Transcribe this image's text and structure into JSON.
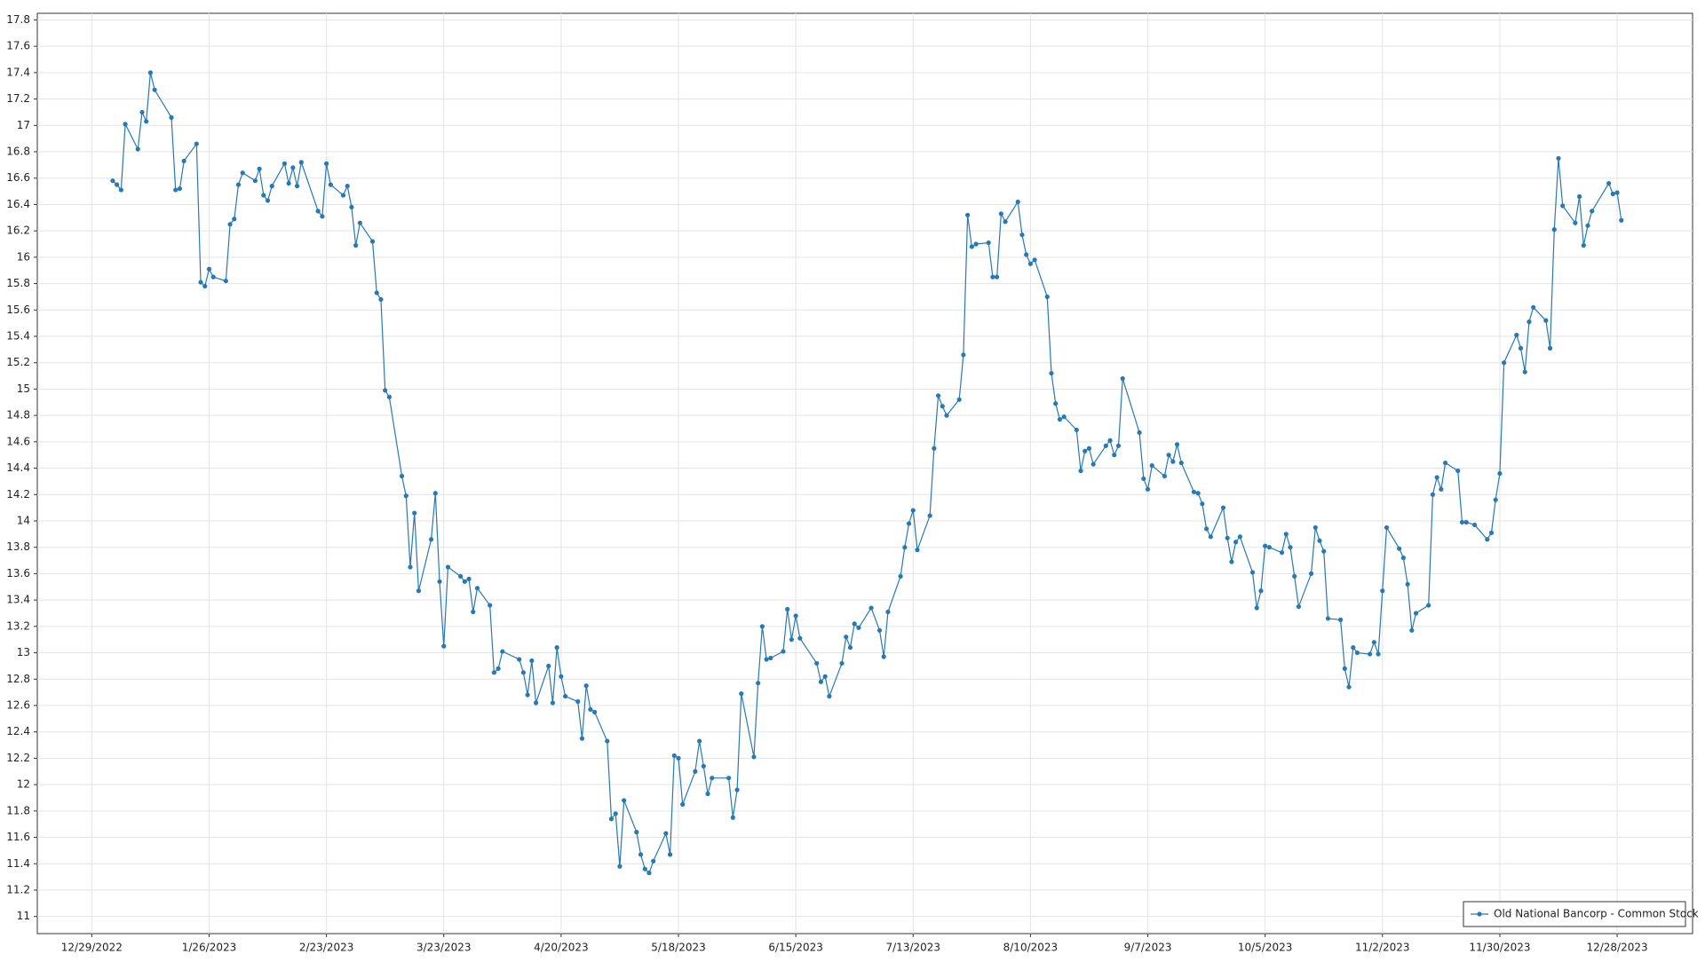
{
  "chart_data": {
    "type": "line",
    "x": [
      "1/3/2023",
      "1/4/2023",
      "1/5/2023",
      "1/6/2023",
      "1/9/2023",
      "1/10/2023",
      "1/11/2023",
      "1/12/2023",
      "1/13/2023",
      "1/17/2023",
      "1/18/2023",
      "1/19/2023",
      "1/20/2023",
      "1/23/2023",
      "1/24/2023",
      "1/25/2023",
      "1/26/2023",
      "1/27/2023",
      "1/30/2023",
      "1/31/2023",
      "2/1/2023",
      "2/2/2023",
      "2/3/2023",
      "2/6/2023",
      "2/7/2023",
      "2/8/2023",
      "2/9/2023",
      "2/10/2023",
      "2/13/2023",
      "2/14/2023",
      "2/15/2023",
      "2/16/2023",
      "2/17/2023",
      "2/21/2023",
      "2/22/2023",
      "2/23/2023",
      "2/24/2023",
      "2/27/2023",
      "2/28/2023",
      "3/1/2023",
      "3/2/2023",
      "3/3/2023",
      "3/6/2023",
      "3/7/2023",
      "3/8/2023",
      "3/9/2023",
      "3/10/2023",
      "3/13/2023",
      "3/14/2023",
      "3/15/2023",
      "3/16/2023",
      "3/17/2023",
      "3/20/2023",
      "3/21/2023",
      "3/22/2023",
      "3/23/2023",
      "3/24/2023",
      "3/27/2023",
      "3/28/2023",
      "3/29/2023",
      "3/30/2023",
      "3/31/2023",
      "4/3/2023",
      "4/4/2023",
      "4/5/2023",
      "4/6/2023",
      "4/10/2023",
      "4/11/2023",
      "4/12/2023",
      "4/13/2023",
      "4/14/2023",
      "4/17/2023",
      "4/18/2023",
      "4/19/2023",
      "4/20/2023",
      "4/21/2023",
      "4/24/2023",
      "4/25/2023",
      "4/26/2023",
      "4/27/2023",
      "4/28/2023",
      "5/1/2023",
      "5/2/2023",
      "5/3/2023",
      "5/4/2023",
      "5/5/2023",
      "5/8/2023",
      "5/9/2023",
      "5/10/2023",
      "5/11/2023",
      "5/12/2023",
      "5/15/2023",
      "5/16/2023",
      "5/17/2023",
      "5/18/2023",
      "5/19/2023",
      "5/22/2023",
      "5/23/2023",
      "5/24/2023",
      "5/25/2023",
      "5/26/2023",
      "5/30/2023",
      "5/31/2023",
      "6/1/2023",
      "6/2/2023",
      "6/5/2023",
      "6/6/2023",
      "6/7/2023",
      "6/8/2023",
      "6/9/2023",
      "6/12/2023",
      "6/13/2023",
      "6/14/2023",
      "6/15/2023",
      "6/16/2023",
      "6/20/2023",
      "6/21/2023",
      "6/22/2023",
      "6/23/2023",
      "6/26/2023",
      "6/27/2023",
      "6/28/2023",
      "6/29/2023",
      "6/30/2023",
      "7/3/2023",
      "7/5/2023",
      "7/6/2023",
      "7/7/2023",
      "7/10/2023",
      "7/11/2023",
      "7/12/2023",
      "7/13/2023",
      "7/14/2023",
      "7/17/2023",
      "7/18/2023",
      "7/19/2023",
      "7/20/2023",
      "7/21/2023",
      "7/24/2023",
      "7/25/2023",
      "7/26/2023",
      "7/27/2023",
      "7/28/2023",
      "7/31/2023",
      "8/1/2023",
      "8/2/2023",
      "8/3/2023",
      "8/4/2023",
      "8/7/2023",
      "8/8/2023",
      "8/9/2023",
      "8/10/2023",
      "8/11/2023",
      "8/14/2023",
      "8/15/2023",
      "8/16/2023",
      "8/17/2023",
      "8/18/2023",
      "8/21/2023",
      "8/22/2023",
      "8/23/2023",
      "8/24/2023",
      "8/25/2023",
      "8/28/2023",
      "8/29/2023",
      "8/30/2023",
      "8/31/2023",
      "9/1/2023",
      "9/5/2023",
      "9/6/2023",
      "9/7/2023",
      "9/8/2023",
      "9/11/2023",
      "9/12/2023",
      "9/13/2023",
      "9/14/2023",
      "9/15/2023",
      "9/18/2023",
      "9/19/2023",
      "9/20/2023",
      "9/21/2023",
      "9/22/2023",
      "9/25/2023",
      "9/26/2023",
      "9/27/2023",
      "9/28/2023",
      "9/29/2023",
      "10/2/2023",
      "10/3/2023",
      "10/4/2023",
      "10/5/2023",
      "10/6/2023",
      "10/9/2023",
      "10/10/2023",
      "10/11/2023",
      "10/12/2023",
      "10/13/2023",
      "10/16/2023",
      "10/17/2023",
      "10/18/2023",
      "10/19/2023",
      "10/20/2023",
      "10/23/2023",
      "10/24/2023",
      "10/25/2023",
      "10/26/2023",
      "10/27/2023",
      "10/30/2023",
      "10/31/2023",
      "11/1/2023",
      "11/2/2023",
      "11/3/2023",
      "11/6/2023",
      "11/7/2023",
      "11/8/2023",
      "11/9/2023",
      "11/10/2023",
      "11/13/2023",
      "11/14/2023",
      "11/15/2023",
      "11/16/2023",
      "11/17/2023",
      "11/20/2023",
      "11/21/2023",
      "11/22/2023",
      "11/24/2023",
      "11/27/2023",
      "11/28/2023",
      "11/29/2023",
      "11/30/2023",
      "12/1/2023",
      "12/4/2023",
      "12/5/2023",
      "12/6/2023",
      "12/7/2023",
      "12/8/2023",
      "12/11/2023",
      "12/12/2023",
      "12/13/2023",
      "12/14/2023",
      "12/15/2023",
      "12/18/2023",
      "12/19/2023",
      "12/20/2023",
      "12/21/2023",
      "12/22/2023",
      "12/26/2023",
      "12/27/2023",
      "12/28/2023",
      "12/29/2023"
    ],
    "series": [
      {
        "name": "Old National Bancorp - Common Stock",
        "color": "#2779b4",
        "values": [
          16.58,
          16.55,
          16.51,
          17.01,
          16.82,
          17.1,
          17.03,
          17.4,
          17.27,
          17.06,
          16.51,
          16.52,
          16.73,
          16.86,
          15.81,
          15.78,
          15.91,
          15.85,
          15.82,
          16.25,
          16.29,
          16.55,
          16.64,
          16.58,
          16.67,
          16.47,
          16.43,
          16.54,
          16.71,
          16.56,
          16.68,
          16.54,
          16.72,
          16.35,
          16.31,
          16.71,
          16.55,
          16.47,
          16.54,
          16.38,
          16.09,
          16.26,
          16.12,
          15.73,
          15.68,
          14.99,
          14.94,
          14.34,
          14.19,
          13.65,
          14.06,
          13.47,
          13.86,
          14.21,
          13.54,
          13.05,
          13.65,
          13.58,
          13.54,
          13.56,
          13.31,
          13.49,
          13.36,
          12.85,
          12.88,
          13.01,
          12.95,
          12.85,
          12.68,
          12.94,
          12.62,
          12.9,
          12.62,
          13.04,
          12.82,
          12.67,
          12.63,
          12.35,
          12.75,
          12.57,
          12.55,
          12.33,
          11.74,
          11.78,
          11.38,
          11.88,
          11.64,
          11.47,
          11.36,
          11.33,
          11.42,
          11.63,
          11.47,
          12.22,
          12.2,
          11.85,
          12.1,
          12.33,
          12.14,
          11.93,
          12.05,
          12.05,
          11.75,
          11.96,
          12.69,
          12.21,
          12.77,
          13.2,
          12.95,
          12.96,
          13.01,
          13.33,
          13.1,
          13.28,
          13.11,
          12.92,
          12.78,
          12.82,
          12.67,
          12.92,
          13.12,
          13.04,
          13.22,
          13.19,
          13.34,
          13.17,
          12.97,
          13.31,
          13.58,
          13.8,
          13.98,
          14.08,
          13.78,
          14.04,
          14.55,
          14.95,
          14.87,
          14.8,
          14.92,
          15.26,
          16.32,
          16.08,
          16.1,
          16.11,
          15.85,
          15.85,
          16.33,
          16.27,
          16.42,
          16.17,
          16.02,
          15.95,
          15.98,
          15.7,
          15.12,
          14.89,
          14.77,
          14.79,
          14.69,
          14.38,
          14.53,
          14.55,
          14.43,
          14.57,
          14.61,
          14.5,
          14.57,
          15.08,
          14.67,
          14.32,
          14.24,
          14.42,
          14.34,
          14.5,
          14.45,
          14.58,
          14.44,
          14.22,
          14.21,
          14.13,
          13.94,
          13.88,
          14.1,
          13.87,
          13.69,
          13.84,
          13.88,
          13.61,
          13.34,
          13.47,
          13.81,
          13.8,
          13.76,
          13.9,
          13.8,
          13.58,
          13.35,
          13.6,
          13.95,
          13.85,
          13.77,
          13.26,
          13.25,
          12.88,
          12.74,
          13.04,
          13.0,
          12.99,
          13.08,
          12.99,
          13.47,
          13.95,
          13.79,
          13.72,
          13.52,
          13.17,
          13.3,
          13.36,
          14.2,
          14.33,
          14.24,
          14.44,
          14.38,
          13.99,
          13.99,
          13.97,
          13.86,
          13.91,
          14.16,
          14.36,
          15.2,
          15.41,
          15.31,
          15.13,
          15.51,
          15.62,
          15.52,
          15.31,
          16.21,
          16.75,
          16.39,
          16.26,
          16.46,
          16.09,
          16.24,
          16.35,
          16.56,
          16.48,
          16.49,
          16.28
        ]
      }
    ],
    "xlim": [
      "12/16/2022",
      "1/15/2024"
    ],
    "xticks": [
      "12/29/2022",
      "1/26/2023",
      "2/23/2023",
      "3/23/2023",
      "4/20/2023",
      "5/18/2023",
      "6/15/2023",
      "7/13/2023",
      "8/10/2023",
      "9/7/2023",
      "10/5/2023",
      "11/2/2023",
      "11/30/2023",
      "12/28/2023"
    ],
    "ylim": [
      10.87,
      17.85
    ],
    "yticks": [
      11,
      11.2,
      11.4,
      11.6,
      11.8,
      12,
      12.2,
      12.4,
      12.6,
      12.8,
      13,
      13.2,
      13.4,
      13.6,
      13.8,
      14,
      14.2,
      14.4,
      14.6,
      14.8,
      15,
      15.2,
      15.4,
      15.6,
      15.8,
      16,
      16.2,
      16.4,
      16.6,
      16.8,
      17,
      17.2,
      17.4,
      17.6,
      17.8
    ],
    "grid": true,
    "legend": "lower right"
  }
}
